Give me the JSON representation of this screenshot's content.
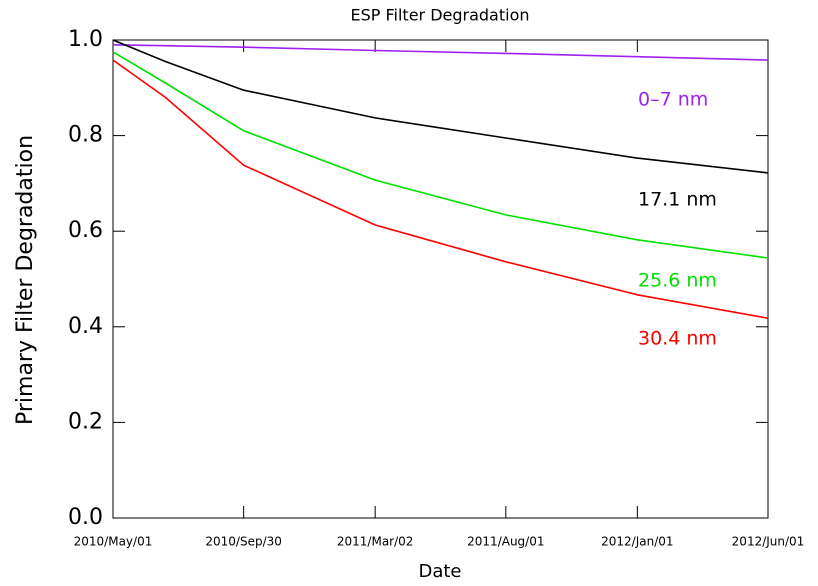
{
  "chart_data": {
    "type": "line",
    "title": "ESP Filter Degradation",
    "x_label": "Date",
    "y_label": "Primary Filter Degradation",
    "x": [
      "2010-05-01",
      "2010-07-01",
      "2010-09-30",
      "2011-03-02",
      "2011-08-01",
      "2012-01-01",
      "2012-06-01"
    ],
    "series": [
      {
        "name": "0–7 nm",
        "color": "#a020f0",
        "values": [
          0.99,
          0.988,
          0.985,
          0.978,
          0.972,
          0.965,
          0.958
        ]
      },
      {
        "name": "17.1 nm",
        "color": "#000000",
        "values": [
          1.0,
          0.955,
          0.895,
          0.837,
          0.795,
          0.753,
          0.722
        ]
      },
      {
        "name": "25.6 nm",
        "color": "#00e000",
        "values": [
          0.975,
          0.91,
          0.81,
          0.707,
          0.634,
          0.582,
          0.544
        ]
      },
      {
        "name": "30.4 nm",
        "color": "#ff0000",
        "values": [
          0.958,
          0.88,
          0.738,
          0.613,
          0.536,
          0.467,
          0.418
        ]
      }
    ],
    "xlim": [
      "2010-05-01",
      "2012-06-01"
    ],
    "xticks": [
      {
        "value": "2010-05-01",
        "label": "2010/May/01"
      },
      {
        "value": "2010-09-30",
        "label": "2010/Sep/30"
      },
      {
        "value": "2011-03-02",
        "label": "2011/Mar/02"
      },
      {
        "value": "2011-08-01",
        "label": "2011/Aug/01"
      },
      {
        "value": "2012-01-01",
        "label": "2012/Jan/01"
      },
      {
        "value": "2012-06-01",
        "label": "2012/Jun/01"
      }
    ],
    "ylim": [
      0,
      1.0
    ],
    "yticks": [
      {
        "value": 0,
        "label": "0.0"
      },
      {
        "value": 0.2,
        "label": "0.2"
      },
      {
        "value": 0.4,
        "label": "0.4"
      },
      {
        "value": 0.6,
        "label": "0.6"
      },
      {
        "value": 0.8,
        "label": "0.8"
      },
      {
        "value": 1.0,
        "label": "1.0"
      }
    ]
  }
}
